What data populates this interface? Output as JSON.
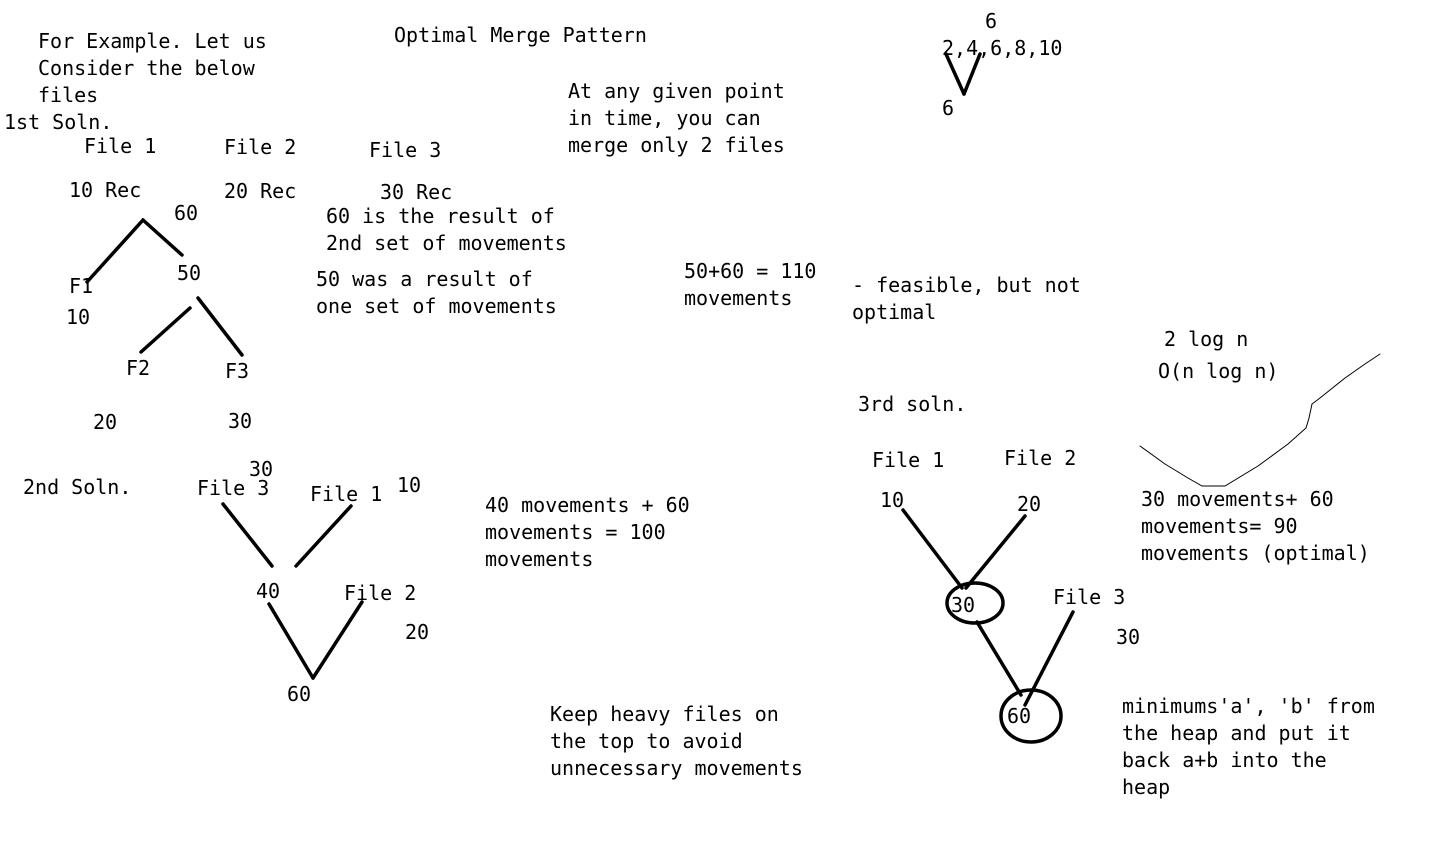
{
  "title": "Optimal Merge Pattern",
  "intro": [
    "For Example. Let us",
    "Consider the below",
    "files"
  ],
  "note_merge": [
    "At any given point",
    "in time, you can",
    "merge only 2 files"
  ],
  "top_right": {
    "top": "6",
    "seq": "2,4,6,8,10",
    "bottom": "6"
  },
  "solution1": {
    "label": "1st Soln.",
    "file1": "File 1",
    "file2": "File 2",
    "file3": "File 3",
    "rec1": "10 Rec",
    "rec2": "20 Rec",
    "rec3": "30 Rec",
    "root": "60",
    "mid": "50",
    "f1": "F1",
    "f1_val": "10",
    "f2": "F2",
    "f3": "F3",
    "f2_val": "20",
    "f3_val": "30",
    "note60": [
      "60 is the result of",
      "2nd set of movements"
    ],
    "note50": [
      "50 was a result of",
      "one set of movements"
    ],
    "total": [
      "50+60 = 110",
      "movements"
    ],
    "verdict": [
      "- feasible, but not",
      "optimal"
    ]
  },
  "complexity": {
    "line1": "2 log n",
    "line2": "O(n log n)"
  },
  "solution2": {
    "label": "2nd Soln.",
    "file3_val": "30",
    "file3": "File 3",
    "file1": "File 1",
    "file1_val": "10",
    "mid": "40",
    "file2": "File 2",
    "file2_val": "20",
    "root": "60",
    "total": [
      "40 movements + 60",
      "movements = 100",
      "movements"
    ]
  },
  "tip": [
    "Keep heavy files on",
    "the top to avoid",
    "unnecessary movements"
  ],
  "solution3": {
    "label": "3rd soln.",
    "file1": "File 1",
    "file2": "File 2",
    "file1_val": "10",
    "file2_val": "20",
    "mid": "30",
    "file3": "File 3",
    "file3_val": "30",
    "root": "60",
    "total": [
      "30 movements+ 60",
      "movements= 90",
      "movements (optimal)"
    ],
    "heap_note": [
      "minimums'a', 'b' from",
      "the heap and put it",
      "back a+b into the",
      "heap"
    ]
  }
}
